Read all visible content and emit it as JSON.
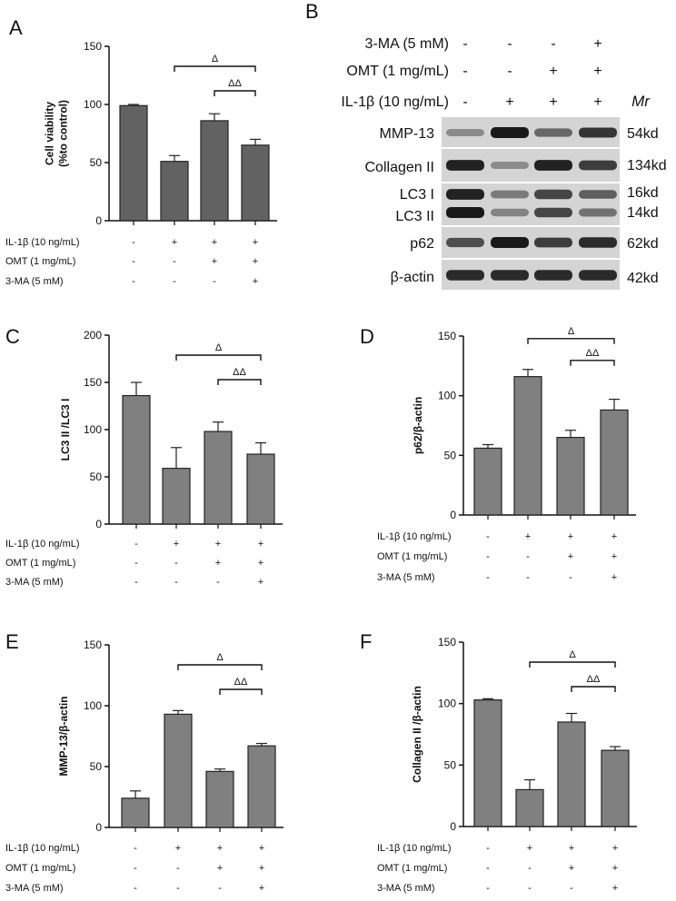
{
  "panels": {
    "A": {
      "letter": "A"
    },
    "B": {
      "letter": "B"
    },
    "C": {
      "letter": "C"
    },
    "D": {
      "letter": "D"
    },
    "E": {
      "letter": "E"
    },
    "F": {
      "letter": "F"
    }
  },
  "conditions": {
    "labels": [
      "IL-1β (10 ng/mL)",
      "OMT (1 mg/mL)",
      "3-MA (5 mM)"
    ],
    "signs": [
      [
        "-",
        "+",
        "+",
        "+"
      ],
      [
        "-",
        "-",
        "+",
        "+"
      ],
      [
        "-",
        "-",
        "-",
        "+"
      ]
    ]
  },
  "chart_data": [
    {
      "id": "A",
      "type": "bar",
      "ylabel_lines": [
        "Cell viability",
        "(%to control)"
      ],
      "ylim": [
        0,
        150
      ],
      "yticks": [
        0,
        50,
        100,
        150
      ],
      "values": [
        99,
        51,
        86,
        65
      ],
      "errors": [
        1,
        5,
        6,
        5
      ],
      "brackets": [
        {
          "from": 1,
          "to": 3,
          "label": "Δ"
        },
        {
          "from": 2,
          "to": 3,
          "label": "ΔΔ"
        }
      ]
    },
    {
      "id": "C",
      "type": "bar",
      "ylabel_lines": [
        "LC3 II /LC3 I"
      ],
      "ylim": [
        0,
        200
      ],
      "yticks": [
        0,
        50,
        100,
        150,
        200
      ],
      "values": [
        136,
        59,
        98,
        74
      ],
      "errors": [
        14,
        22,
        10,
        12
      ],
      "brackets": [
        {
          "from": 1,
          "to": 3,
          "label": "Δ"
        },
        {
          "from": 2,
          "to": 3,
          "label": "ΔΔ"
        }
      ]
    },
    {
      "id": "D",
      "type": "bar",
      "ylabel_lines": [
        "p62/β-actin"
      ],
      "ylim": [
        0,
        150
      ],
      "yticks": [
        0,
        50,
        100,
        150
      ],
      "values": [
        56,
        116,
        65,
        88
      ],
      "errors": [
        3,
        6,
        6,
        9
      ],
      "brackets": [
        {
          "from": 1,
          "to": 3,
          "label": "Δ"
        },
        {
          "from": 2,
          "to": 3,
          "label": "ΔΔ"
        }
      ]
    },
    {
      "id": "E",
      "type": "bar",
      "ylabel_lines": [
        "MMP-13/β-actin"
      ],
      "ylim": [
        0,
        150
      ],
      "yticks": [
        0,
        50,
        100,
        150
      ],
      "values": [
        24,
        93,
        46,
        67
      ],
      "errors": [
        6,
        3,
        2,
        2
      ],
      "brackets": [
        {
          "from": 1,
          "to": 3,
          "label": "Δ"
        },
        {
          "from": 2,
          "to": 3,
          "label": "ΔΔ"
        }
      ]
    },
    {
      "id": "F",
      "type": "bar",
      "ylabel_lines": [
        "Collagen II /β-actin"
      ],
      "ylim": [
        0,
        150
      ],
      "yticks": [
        0,
        50,
        100,
        150
      ],
      "values": [
        103,
        30,
        85,
        62
      ],
      "errors": [
        1,
        8,
        7,
        3
      ],
      "brackets": [
        {
          "from": 1,
          "to": 3,
          "label": "Δ"
        },
        {
          "from": 2,
          "to": 3,
          "label": "ΔΔ"
        }
      ]
    }
  ],
  "blot": {
    "header_rows": [
      {
        "label": "3-MA (5 mM)",
        "signs": [
          "-",
          "-",
          "-",
          "+"
        ]
      },
      {
        "label": "OMT (1 mg/mL)",
        "signs": [
          "-",
          "-",
          "+",
          "+"
        ]
      },
      {
        "label": "IL-1β (10 ng/mL)",
        "signs": [
          "-",
          "+",
          "+",
          "+"
        ]
      }
    ],
    "mr_label": "Mr",
    "bands": [
      {
        "name": "MMP-13",
        "size": "54kd",
        "intensity": [
          0.35,
          1.0,
          0.55,
          0.85
        ]
      },
      {
        "name": "Collagen II",
        "size": "134kd",
        "intensity": [
          0.95,
          0.35,
          0.95,
          0.8
        ]
      },
      {
        "name": "LC3 I",
        "size": "16kd",
        "intensity": [
          0.95,
          0.45,
          0.75,
          0.6
        ]
      },
      {
        "name": "LC3 II",
        "size": "14kd",
        "intensity": [
          1.0,
          0.4,
          0.75,
          0.5
        ]
      },
      {
        "name": "p62",
        "size": "62kd",
        "intensity": [
          0.7,
          1.0,
          0.8,
          0.9
        ]
      },
      {
        "name": "β-actin",
        "size": "42kd",
        "intensity": [
          0.9,
          0.9,
          0.9,
          0.9
        ]
      }
    ]
  }
}
